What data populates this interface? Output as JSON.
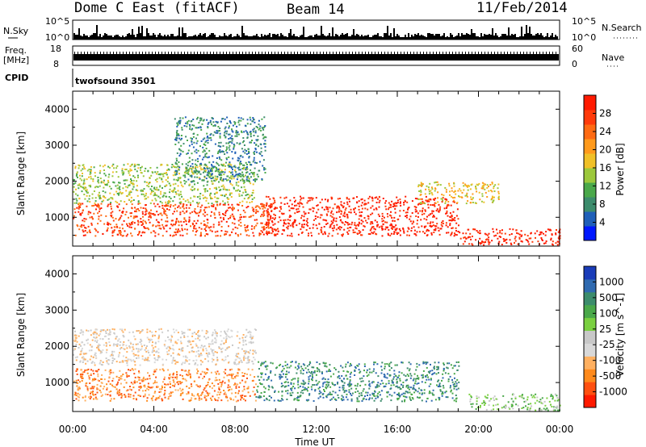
{
  "header": {
    "title": "Dome C East (fitACF)",
    "beam": "Beam 14",
    "date": "11/Feb/2014"
  },
  "top_panels": {
    "nsky_label": "N.Sky",
    "nsearch_label": "N.Search",
    "nsky_left_ticks": [
      "10^5",
      "10^0"
    ],
    "nsky_right_ticks": [
      "10^5",
      "10^0"
    ],
    "freq_label_1": "Freq.",
    "freq_label_2": "[MHz]",
    "freq_ticks": [
      "18",
      "8"
    ],
    "nave_label": "Nave",
    "nave_ticks": [
      "60",
      "0"
    ],
    "cpid_label": "CPID",
    "cpid_text": "twofsound 3501"
  },
  "chart_data": [
    {
      "type": "heatmap",
      "name": "power-panel",
      "xlabel": "",
      "ylabel": "Slant Range [km]",
      "x_tick_labels": [
        "00:00",
        "04:00",
        "08:00",
        "12:00",
        "16:00",
        "20:00",
        "00:00"
      ],
      "x_range_hours": [
        0,
        24
      ],
      "y_ticks": [
        1000,
        2000,
        3000,
        4000
      ],
      "y_range_km": [
        200,
        4500
      ],
      "colorbar": {
        "label": "Power [dB]",
        "ticks": [
          "4",
          "8",
          "12",
          "16",
          "20",
          "24",
          "28"
        ],
        "colors": [
          "#0018ff",
          "#1f5fb8",
          "#3c8c6c",
          "#4aa84a",
          "#9cc83c",
          "#f0c028",
          "#ff9a1c",
          "#ff6a12",
          "#ff3a0a",
          "#ff1a00"
        ]
      },
      "regions": [
        {
          "t0": 0.0,
          "t1": 10.0,
          "r0": 500,
          "r1": 1400,
          "level": 8
        },
        {
          "t0": 0.0,
          "t1": 9.0,
          "r0": 1400,
          "r1": 2500,
          "level": 4
        },
        {
          "t0": 5.0,
          "t1": 9.5,
          "r0": 2000,
          "r1": 3800,
          "level": 2
        },
        {
          "t0": 9.5,
          "t1": 19.0,
          "r0": 500,
          "r1": 1600,
          "level": 9
        },
        {
          "t0": 19.0,
          "t1": 24.0,
          "r0": 250,
          "r1": 700,
          "level": 9
        },
        {
          "t0": 17.0,
          "t1": 21.0,
          "r0": 1400,
          "r1": 2000,
          "level": 5
        }
      ]
    },
    {
      "type": "heatmap",
      "name": "velocity-panel",
      "xlabel": "Time UT",
      "ylabel": "Slant Range [km]",
      "x_tick_labels": [
        "00:00",
        "04:00",
        "08:00",
        "12:00",
        "16:00",
        "20:00",
        "00:00"
      ],
      "x_range_hours": [
        0,
        24
      ],
      "y_ticks": [
        1000,
        2000,
        3000,
        4000
      ],
      "y_range_km": [
        200,
        4500
      ],
      "colorbar": {
        "label": "Velocity [m s^-1]",
        "ticks": [
          "1000",
          "500",
          "100",
          "25",
          "-25",
          "-100",
          "-500",
          "-1000"
        ],
        "colors": [
          "#1a3cb8",
          "#2f6ab0",
          "#3c8c6c",
          "#4aa84a",
          "#7ad040",
          "#c8c8c8",
          "#d8d8d8",
          "#ffb060",
          "#ff8a1c",
          "#ff5010",
          "#ff1a00"
        ]
      },
      "regions": [
        {
          "t0": 0.0,
          "t1": 9.0,
          "r0": 500,
          "r1": 1400,
          "level": 8
        },
        {
          "t0": 0.0,
          "t1": 9.0,
          "r0": 1500,
          "r1": 2500,
          "level": 6
        },
        {
          "t0": 9.0,
          "t1": 19.0,
          "r0": 500,
          "r1": 1600,
          "level": 2
        },
        {
          "t0": 19.5,
          "t1": 24.0,
          "r0": 250,
          "r1": 700,
          "level": 4
        }
      ]
    }
  ]
}
